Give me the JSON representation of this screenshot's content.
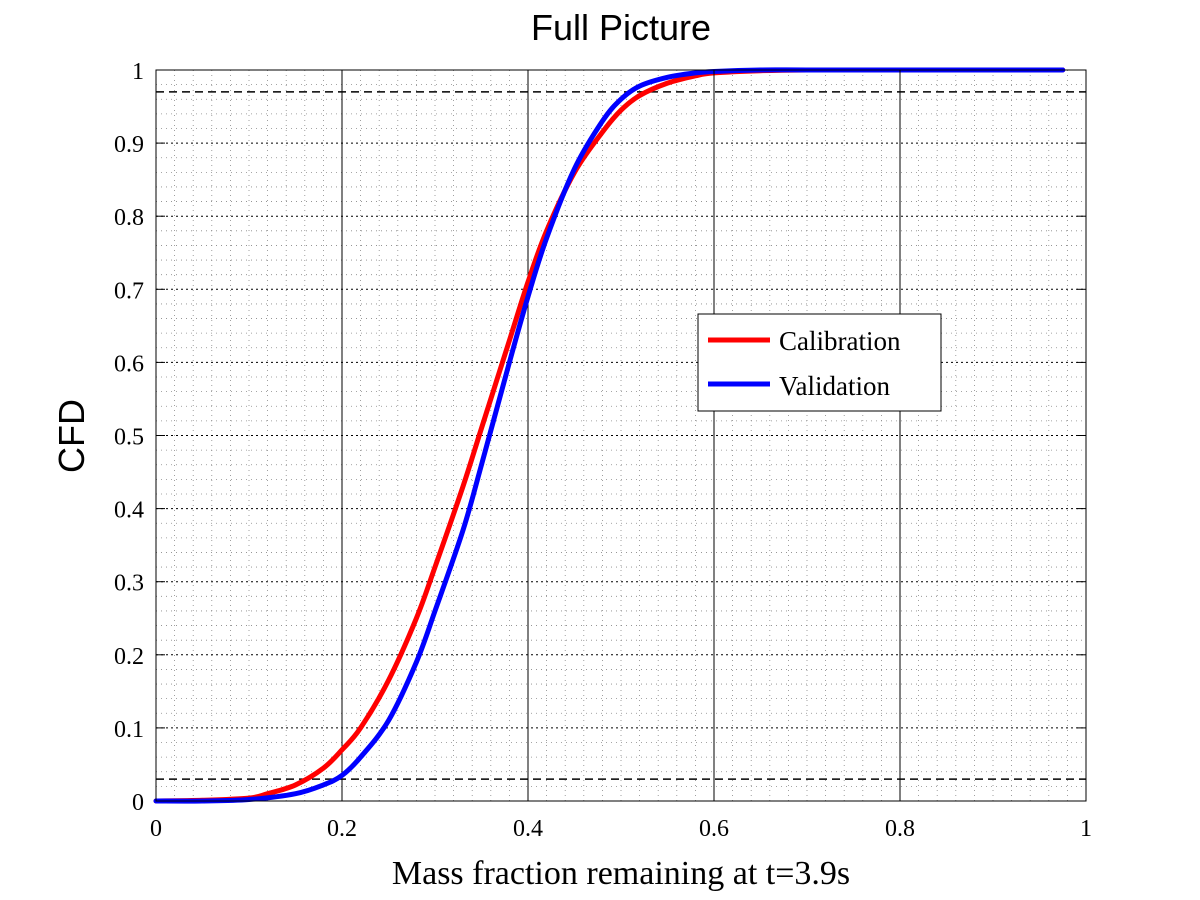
{
  "chart_data": {
    "type": "line",
    "title": "Full Picture",
    "xlabel": "Mass fraction remaining at t=3.9s",
    "ylabel": "CFD",
    "xlim": [
      0,
      1
    ],
    "ylim": [
      0,
      1
    ],
    "xticks": [
      "0",
      "0.2",
      "0.4",
      "0.6",
      "0.8",
      "1"
    ],
    "yticks": [
      "0",
      "0.1",
      "0.2",
      "0.3",
      "0.4",
      "0.5",
      "0.6",
      "0.7",
      "0.8",
      "0.9",
      "1"
    ],
    "grid": true,
    "legend_position": "right",
    "reference_lines": [
      0.03,
      0.97
    ],
    "series": [
      {
        "name": "Calibration",
        "color": "#ff0000",
        "x": [
          0.0,
          0.05,
          0.1,
          0.12,
          0.15,
          0.18,
          0.2,
          0.22,
          0.25,
          0.28,
          0.3,
          0.33,
          0.35,
          0.38,
          0.4,
          0.42,
          0.45,
          0.48,
          0.5,
          0.52,
          0.55,
          0.58,
          0.6,
          0.65,
          0.7,
          0.8,
          0.9,
          0.975
        ],
        "y": [
          0.0,
          0.001,
          0.004,
          0.01,
          0.022,
          0.045,
          0.07,
          0.1,
          0.165,
          0.25,
          0.32,
          0.43,
          0.51,
          0.63,
          0.71,
          0.78,
          0.86,
          0.915,
          0.945,
          0.965,
          0.982,
          0.992,
          0.996,
          0.999,
          1.0,
          1.0,
          1.0,
          1.0
        ]
      },
      {
        "name": "Validation",
        "color": "#0000ff",
        "x": [
          0.0,
          0.05,
          0.1,
          0.15,
          0.18,
          0.2,
          0.22,
          0.25,
          0.28,
          0.3,
          0.33,
          0.35,
          0.38,
          0.4,
          0.42,
          0.45,
          0.48,
          0.5,
          0.52,
          0.55,
          0.58,
          0.6,
          0.65,
          0.7,
          0.8,
          0.9,
          0.975
        ],
        "y": [
          0.0,
          0.0,
          0.002,
          0.01,
          0.022,
          0.035,
          0.06,
          0.11,
          0.19,
          0.26,
          0.37,
          0.46,
          0.6,
          0.69,
          0.77,
          0.865,
          0.93,
          0.96,
          0.978,
          0.99,
          0.996,
          0.998,
          1.0,
          1.0,
          1.0,
          1.0,
          1.0
        ]
      }
    ]
  }
}
